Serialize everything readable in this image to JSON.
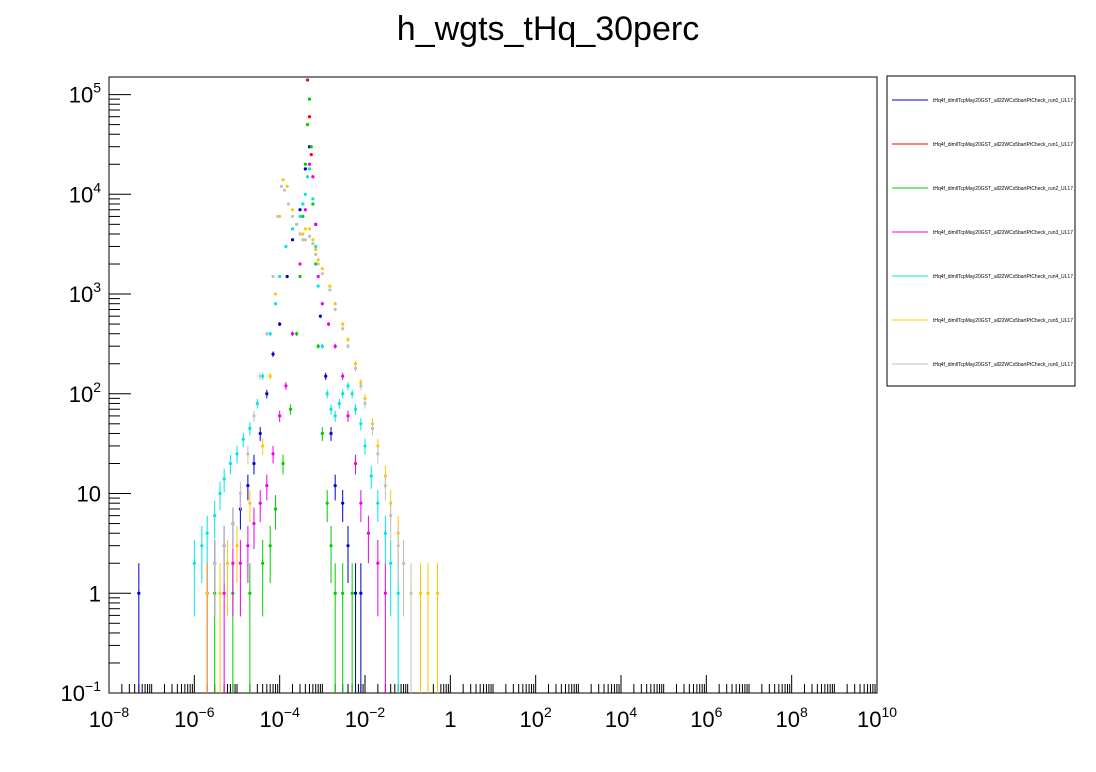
{
  "chart_data": {
    "type": "scatter",
    "title": "h_wgts_tHq_30perc",
    "xscale": "log",
    "yscale": "log",
    "xlim": [
      1e-08,
      10000000000.0
    ],
    "ylim": [
      0.1,
      150000
    ],
    "legend_position": "top-right, outside plot",
    "x_tick_labels": [
      {
        "x": 1e-08,
        "base": "10",
        "exp": "−8"
      },
      {
        "x": 1e-06,
        "base": "10",
        "exp": "−6"
      },
      {
        "x": 0.0001,
        "base": "10",
        "exp": "−4"
      },
      {
        "x": 0.01,
        "base": "10",
        "exp": "−2"
      },
      {
        "x": 1,
        "base": "1",
        "exp": ""
      },
      {
        "x": 100.0,
        "base": "10",
        "exp": "2"
      },
      {
        "x": 10000.0,
        "base": "10",
        "exp": "4"
      },
      {
        "x": 1000000.0,
        "base": "10",
        "exp": "6"
      },
      {
        "x": 100000000.0,
        "base": "10",
        "exp": "8"
      },
      {
        "x": 10000000000.0,
        "base": "10",
        "exp": "10"
      }
    ],
    "y_tick_labels": [
      {
        "y": 0.1,
        "base": "10",
        "exp": "−1"
      },
      {
        "y": 1,
        "base": "1",
        "exp": ""
      },
      {
        "y": 10,
        "base": "10",
        "exp": ""
      },
      {
        "y": 100,
        "base": "10",
        "exp": "2"
      },
      {
        "y": 1000,
        "base": "10",
        "exp": "3"
      },
      {
        "y": 10000,
        "base": "10",
        "exp": "4"
      },
      {
        "y": 100000,
        "base": "10",
        "exp": "5"
      }
    ],
    "series": [
      {
        "name": "tHq4f_dimllTcpMay20GST_all22WCs5bartPtCheck_run0_UL17",
        "color": "#0000cc",
        "points": [
          [
            5e-08,
            1
          ],
          [
            2e-06,
            1
          ],
          [
            3e-06,
            2
          ],
          [
            5e-06,
            3
          ],
          [
            8e-06,
            5
          ],
          [
            1.2e-05,
            7
          ],
          [
            1.8e-05,
            12
          ],
          [
            2.5e-05,
            20
          ],
          [
            3.5e-05,
            40
          ],
          [
            5e-05,
            100
          ],
          [
            7e-05,
            250
          ],
          [
            0.0001,
            500
          ],
          [
            0.00015,
            1500
          ],
          [
            0.0002,
            3500
          ],
          [
            0.0003,
            7000
          ],
          [
            0.0004,
            18000
          ],
          [
            0.0005,
            30000
          ],
          [
            0.0007,
            5000
          ],
          [
            0.0009,
            600
          ],
          [
            0.0012,
            150
          ],
          [
            0.0016,
            40
          ],
          [
            0.002,
            12
          ],
          [
            0.003,
            8
          ],
          [
            0.004,
            3
          ],
          [
            0.006,
            1
          ],
          [
            0.008,
            1
          ]
        ]
      },
      {
        "name": "tHq4f_dimllTcpMay20GST_all22WCs5bartPtCheck_run1_UL17",
        "color": "#ff0000",
        "points": [
          [
            0.00045,
            140000
          ],
          [
            0.0005,
            60000
          ],
          [
            0.00055,
            25000
          ]
        ]
      },
      {
        "name": "tHq4f_dimllTcpMay20GST_all22WCs5bartPtCheck_run2_UL17",
        "color": "#00cc00",
        "points": [
          [
            3e-06,
            1
          ],
          [
            8e-06,
            1
          ],
          [
            2e-05,
            1
          ],
          [
            4e-05,
            2
          ],
          [
            6e-05,
            3
          ],
          [
            8e-05,
            7
          ],
          [
            0.00012,
            20
          ],
          [
            0.00018,
            70
          ],
          [
            0.00025,
            400
          ],
          [
            0.0003,
            1500
          ],
          [
            0.00035,
            6000
          ],
          [
            0.0004,
            20000
          ],
          [
            0.00045,
            50000
          ],
          [
            0.0005,
            90000
          ],
          [
            0.00055,
            30000
          ],
          [
            0.0006,
            8000
          ],
          [
            0.0007,
            2000
          ],
          [
            0.0008,
            300
          ],
          [
            0.001,
            40
          ],
          [
            0.0013,
            8
          ],
          [
            0.0016,
            3
          ],
          [
            0.002,
            1
          ],
          [
            0.003,
            1
          ],
          [
            0.005,
            1
          ]
        ]
      },
      {
        "name": "tHq4f_dimllTcpMay20GST_all22WCs5bartPtCheck_run3_UL17",
        "color": "#ee00ee",
        "points": [
          [
            2e-06,
            1
          ],
          [
            5e-06,
            1
          ],
          [
            8e-06,
            2
          ],
          [
            1.2e-05,
            2
          ],
          [
            1.8e-05,
            3
          ],
          [
            2.5e-05,
            5
          ],
          [
            3.5e-05,
            8
          ],
          [
            5e-05,
            12
          ],
          [
            7e-05,
            25
          ],
          [
            0.0001,
            60
          ],
          [
            0.00014,
            120
          ],
          [
            0.0002,
            400
          ],
          [
            0.0003,
            2000
          ],
          [
            0.0004,
            7000
          ],
          [
            0.0005,
            20000
          ],
          [
            0.0006,
            15000
          ],
          [
            0.0007,
            5000
          ],
          [
            0.0008,
            1500
          ],
          [
            0.001,
            800
          ],
          [
            0.0014,
            500
          ],
          [
            0.002,
            300
          ],
          [
            0.003,
            150
          ],
          [
            0.004,
            60
          ],
          [
            0.006,
            20
          ],
          [
            0.008,
            8
          ],
          [
            0.012,
            4
          ],
          [
            0.02,
            2
          ],
          [
            0.03,
            1
          ]
        ]
      },
      {
        "name": "tHq4f_dimllTcpMay20GST_all22WCs5bartPtCheck_run4_UL17",
        "color": "#00e5e5",
        "points": [
          [
            1e-06,
            2
          ],
          [
            1.5e-06,
            3
          ],
          [
            2e-06,
            4
          ],
          [
            3e-06,
            6
          ],
          [
            4e-06,
            10
          ],
          [
            5e-06,
            14
          ],
          [
            7e-06,
            20
          ],
          [
            1e-05,
            25
          ],
          [
            1.4e-05,
            35
          ],
          [
            2e-05,
            45
          ],
          [
            3e-05,
            80
          ],
          [
            4e-05,
            150
          ],
          [
            6e-05,
            400
          ],
          [
            8e-05,
            800
          ],
          [
            0.0001,
            1500
          ],
          [
            0.00014,
            3000
          ],
          [
            0.0002,
            4500
          ],
          [
            0.00025,
            5000
          ],
          [
            0.0003,
            6000
          ],
          [
            0.00035,
            8000
          ],
          [
            0.0004,
            10000
          ],
          [
            0.00045,
            15000
          ],
          [
            0.0005,
            18000
          ],
          [
            0.0006,
            9000
          ],
          [
            0.0007,
            3000
          ],
          [
            0.0008,
            1200
          ],
          [
            0.001,
            300
          ],
          [
            0.0013,
            100
          ],
          [
            0.0016,
            70
          ],
          [
            0.002,
            60
          ],
          [
            0.0025,
            80
          ],
          [
            0.003,
            100
          ],
          [
            0.004,
            120
          ],
          [
            0.005,
            100
          ],
          [
            0.006,
            70
          ],
          [
            0.008,
            50
          ],
          [
            0.01,
            30
          ],
          [
            0.014,
            15
          ],
          [
            0.02,
            8
          ],
          [
            0.03,
            4
          ],
          [
            0.04,
            2
          ],
          [
            0.06,
            1
          ]
        ]
      },
      {
        "name": "tHq4f_dimllTcpMay20GST_all22WCs5bartPtCheck_run5_UL17",
        "color": "#ffc800",
        "points": [
          [
            2e-06,
            1
          ],
          [
            4e-06,
            1
          ],
          [
            6e-06,
            2
          ],
          [
            1e-05,
            3
          ],
          [
            2e-05,
            8
          ],
          [
            4e-05,
            30
          ],
          [
            6e-05,
            150
          ],
          [
            8e-05,
            1000
          ],
          [
            0.0001,
            6000
          ],
          [
            0.00012,
            14000
          ],
          [
            0.00015,
            12000
          ],
          [
            0.0002,
            7000
          ],
          [
            0.00025,
            5000
          ],
          [
            0.0003,
            4000
          ],
          [
            0.00035,
            4000
          ],
          [
            0.0004,
            4500
          ],
          [
            0.0005,
            4500
          ],
          [
            0.0006,
            3500
          ],
          [
            0.0007,
            2800
          ],
          [
            0.0008,
            2200
          ],
          [
            0.001,
            1800
          ],
          [
            0.0015,
            1200
          ],
          [
            0.002,
            800
          ],
          [
            0.003,
            500
          ],
          [
            0.004,
            350
          ],
          [
            0.006,
            200
          ],
          [
            0.008,
            130
          ],
          [
            0.01,
            90
          ],
          [
            0.015,
            50
          ],
          [
            0.02,
            30
          ],
          [
            0.03,
            15
          ],
          [
            0.04,
            8
          ],
          [
            0.06,
            4
          ],
          [
            0.08,
            2
          ],
          [
            0.12,
            1
          ],
          [
            0.2,
            1
          ],
          [
            0.3,
            1
          ],
          [
            0.5,
            1
          ]
        ]
      },
      {
        "name": "tHq4f_dimllTcpMay20GST_all22WCs5bartPtCheck_run6_UL17",
        "color": "#c0c0c0",
        "points": [
          [
            3e-06,
            2
          ],
          [
            5e-06,
            3
          ],
          [
            8e-06,
            5
          ],
          [
            1.2e-05,
            10
          ],
          [
            1.8e-05,
            25
          ],
          [
            2.5e-05,
            60
          ],
          [
            3.5e-05,
            150
          ],
          [
            5e-05,
            400
          ],
          [
            7e-05,
            1500
          ],
          [
            9e-05,
            6000
          ],
          [
            0.00011,
            12000
          ],
          [
            0.00013,
            11000
          ],
          [
            0.00016,
            8000
          ],
          [
            0.0002,
            6000
          ],
          [
            0.00025,
            5000
          ],
          [
            0.0003,
            4000
          ],
          [
            0.00035,
            3500
          ],
          [
            0.0004,
            3500
          ],
          [
            0.0005,
            3800
          ],
          [
            0.0006,
            3200
          ],
          [
            0.0007,
            2500
          ],
          [
            0.0008,
            2000
          ],
          [
            0.001,
            1600
          ],
          [
            0.0015,
            1100
          ],
          [
            0.002,
            700
          ],
          [
            0.003,
            450
          ],
          [
            0.004,
            300
          ],
          [
            0.006,
            180
          ],
          [
            0.008,
            120
          ],
          [
            0.01,
            80
          ],
          [
            0.015,
            45
          ],
          [
            0.02,
            25
          ],
          [
            0.03,
            12
          ],
          [
            0.04,
            6
          ],
          [
            0.06,
            3
          ],
          [
            0.08,
            2
          ],
          [
            0.12,
            1
          ]
        ]
      }
    ]
  }
}
